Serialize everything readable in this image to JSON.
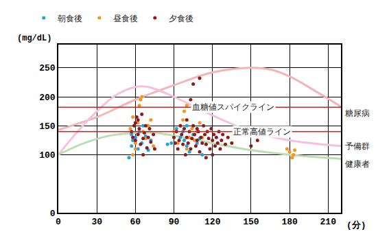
{
  "chart_data": {
    "type": "scatter",
    "y_label": "(mg/dL)",
    "x_label": "(分)",
    "xlim": [
      0,
      220
    ],
    "xticks": [
      0,
      30,
      60,
      90,
      120,
      150,
      180,
      210
    ],
    "ylim": [
      0,
      290
    ],
    "yticks": [
      0,
      100,
      150,
      200,
      250
    ],
    "grid": true,
    "legend": "top left",
    "series": [
      {
        "name": "朝食後",
        "type": "scatter",
        "marker": "circle",
        "color": "#1ea0e6",
        "x": [
          55,
          57,
          58,
          60,
          62,
          63,
          65,
          68,
          70,
          72,
          85,
          88,
          92,
          95,
          97,
          98,
          100,
          100,
          102,
          105,
          108,
          110,
          112,
          57,
          66
        ],
        "values": [
          95,
          115,
          125,
          130,
          110,
          140,
          120,
          132,
          108,
          125,
          118,
          120,
          145,
          130,
          140,
          125,
          115,
          150,
          105,
          135,
          120,
          128,
          100,
          135,
          150
        ]
      },
      {
        "name": "昼食後",
        "type": "scatter",
        "marker": "circle",
        "color": "#f7941d",
        "x": [
          56,
          58,
          60,
          62,
          63,
          65,
          64,
          66,
          68,
          70,
          72,
          74,
          58,
          60,
          93,
          95,
          97,
          98,
          100,
          102,
          104,
          106,
          108,
          110,
          100,
          178,
          180,
          182,
          184,
          183,
          90,
          112
        ],
        "values": [
          145,
          165,
          120,
          155,
          185,
          200,
          195,
          140,
          128,
          150,
          160,
          115,
          100,
          110,
          120,
          150,
          160,
          175,
          185,
          130,
          145,
          125,
          140,
          155,
          110,
          110,
          105,
          95,
          108,
          100,
          140,
          130
        ]
      },
      {
        "name": "夕食後",
        "type": "scatter",
        "marker": "circle",
        "color": "#8b1a1a",
        "x": [
          57,
          58,
          59,
          60,
          60,
          61,
          62,
          63,
          64,
          65,
          66,
          67,
          68,
          69,
          70,
          71,
          72,
          74,
          75,
          62,
          66,
          90,
          91,
          92,
          93,
          94,
          95,
          96,
          97,
          98,
          99,
          100,
          100,
          101,
          102,
          103,
          103,
          104,
          105,
          105,
          106,
          107,
          108,
          108,
          109,
          110,
          110,
          111,
          112,
          113,
          114,
          115,
          115,
          116,
          117,
          118,
          119,
          120,
          120,
          121,
          122,
          123,
          124,
          125,
          126,
          127,
          128,
          130,
          132,
          135,
          150,
          155,
          150
        ],
        "values": [
          140,
          130,
          150,
          155,
          125,
          165,
          135,
          145,
          118,
          170,
          128,
          138,
          150,
          112,
          130,
          145,
          122,
          135,
          110,
          160,
          100,
          130,
          120,
          140,
          110,
          125,
          150,
          135,
          118,
          145,
          100,
          130,
          160,
          120,
          140,
          195,
          110,
          128,
          150,
          222,
          135,
          115,
          125,
          145,
          140,
          105,
          232,
          130,
          120,
          150,
          135,
          95,
          118,
          140,
          128,
          110,
          145,
          125,
          100,
          135,
          115,
          130,
          120,
          140,
          110,
          125,
          135,
          118,
          130,
          120,
          140,
          125,
          115
        ]
      },
      {
        "name": "糖尿病",
        "type": "line",
        "line_style": "solid",
        "color": "#f6b3b8",
        "x": [
          0,
          30,
          60,
          90,
          120,
          150,
          165,
          180,
          200,
          220
        ],
        "values": [
          143,
          165,
          195,
          220,
          242,
          250,
          247,
          235,
          210,
          183
        ]
      },
      {
        "name": "予備群",
        "type": "line",
        "line_style": "solid",
        "color": "#f7c0dc",
        "x": [
          0,
          15,
          30,
          45,
          60,
          70,
          90,
          120,
          150,
          180,
          220
        ],
        "values": [
          100,
          140,
          175,
          203,
          217,
          217,
          200,
          168,
          140,
          125,
          115
        ]
      },
      {
        "name": "健康者",
        "type": "line",
        "line_style": "solid",
        "color": "#b9dfb0",
        "x": [
          0,
          20,
          40,
          60,
          75,
          90,
          120,
          150,
          180,
          220
        ],
        "values": [
          100,
          120,
          133,
          138,
          138,
          133,
          120,
          108,
          100,
          93
        ]
      }
    ],
    "reference_lines": [
      {
        "label": "血糖値スパイクライン",
        "value": 182,
        "color": "#e0201f"
      },
      {
        "label": "正常高値ライン",
        "value": 140,
        "color": "#e0201f"
      }
    ]
  }
}
